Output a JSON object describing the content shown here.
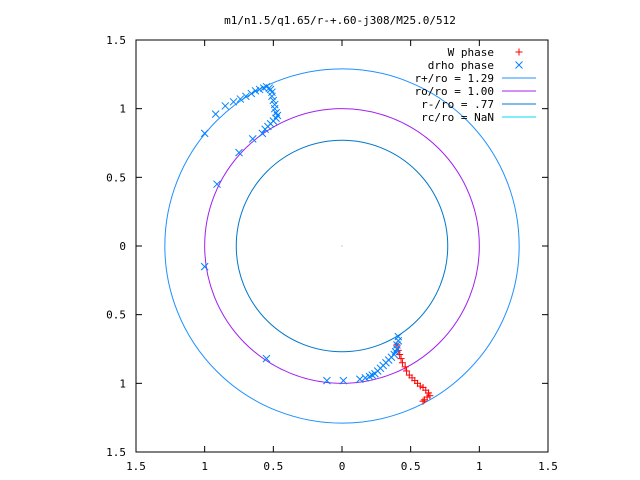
{
  "chart_data": {
    "type": "scatter",
    "title": "m1/n1.5/q1.65/r-+.60-j308/M25.0/512",
    "xlabel": "",
    "ylabel": "",
    "xlim": [
      -1.5,
      1.5
    ],
    "ylim": [
      -1.5,
      1.5
    ],
    "x_ticks": [
      -1.5,
      -1,
      -0.5,
      0,
      0.5,
      1,
      1.5
    ],
    "x_tick_labels": [
      "1.5",
      "1",
      "0.5",
      "0",
      "0.5",
      "1",
      "1.5"
    ],
    "y_ticks": [
      1.5,
      1,
      0.5,
      0,
      -0.5,
      -1,
      -1.5
    ],
    "y_tick_labels": [
      "1.5",
      "1",
      "0.5",
      "0",
      "0.5",
      "1",
      "1.5"
    ],
    "grid": false,
    "legend_position": "top-right",
    "colors": {
      "w_phase": "#ff0000",
      "drho_phase": "#0080ff",
      "r_plus": "#1e90ff",
      "r_o": "#a020f0",
      "r_minus": "#0077cc",
      "r_c": "#00ddee"
    },
    "series": [
      {
        "name": "W phase",
        "marker": "+",
        "color": "#ff0000",
        "points": [
          [
            0.4,
            -0.72
          ],
          [
            0.41,
            -0.76
          ],
          [
            0.42,
            -0.79
          ],
          [
            0.43,
            -0.82
          ],
          [
            0.44,
            -0.85
          ],
          [
            0.46,
            -0.88
          ],
          [
            0.47,
            -0.91
          ],
          [
            0.49,
            -0.94
          ],
          [
            0.51,
            -0.96
          ],
          [
            0.53,
            -0.98
          ],
          [
            0.55,
            -1.0
          ],
          [
            0.57,
            -1.02
          ],
          [
            0.59,
            -1.03
          ],
          [
            0.61,
            -1.05
          ],
          [
            0.63,
            -1.07
          ],
          [
            0.64,
            -1.09
          ],
          [
            0.62,
            -1.1
          ],
          [
            0.6,
            -1.12
          ],
          [
            0.59,
            -1.13
          ]
        ]
      },
      {
        "name": "drho phase",
        "marker": "x",
        "color": "#0080ff",
        "points": [
          [
            0.41,
            -0.66
          ],
          [
            0.41,
            -0.69
          ],
          [
            0.4,
            -0.72
          ],
          [
            0.4,
            -0.75
          ],
          [
            0.39,
            -0.77
          ],
          [
            0.38,
            -0.79
          ],
          [
            0.36,
            -0.81
          ],
          [
            0.34,
            -0.83
          ],
          [
            0.32,
            -0.85
          ],
          [
            0.3,
            -0.87
          ],
          [
            0.28,
            -0.89
          ],
          [
            0.26,
            -0.91
          ],
          [
            0.24,
            -0.93
          ],
          [
            0.22,
            -0.94
          ],
          [
            0.2,
            -0.95
          ],
          [
            0.17,
            -0.96
          ],
          [
            0.13,
            -0.97
          ],
          [
            0.01,
            -0.98
          ],
          [
            -0.11,
            -0.98
          ],
          [
            -0.55,
            -0.82
          ],
          [
            -1.0,
            -0.15
          ],
          [
            -0.91,
            0.45
          ],
          [
            -0.75,
            0.68
          ],
          [
            -0.65,
            0.78
          ],
          [
            -0.58,
            0.82
          ],
          [
            -0.56,
            0.85
          ],
          [
            -0.54,
            0.87
          ],
          [
            -0.52,
            0.89
          ],
          [
            -0.5,
            0.91
          ],
          [
            -0.48,
            0.93
          ],
          [
            -0.47,
            0.95
          ],
          [
            -0.48,
            0.97
          ],
          [
            -0.49,
            1.0
          ],
          [
            -0.49,
            1.03
          ],
          [
            -0.5,
            1.06
          ],
          [
            -0.51,
            1.09
          ],
          [
            -0.51,
            1.12
          ],
          [
            -0.52,
            1.14
          ],
          [
            -0.53,
            1.15
          ],
          [
            -0.55,
            1.16
          ],
          [
            -0.57,
            1.15
          ],
          [
            -0.6,
            1.14
          ],
          [
            -0.63,
            1.13
          ],
          [
            -0.66,
            1.11
          ],
          [
            -0.7,
            1.09
          ],
          [
            -0.74,
            1.07
          ],
          [
            -0.79,
            1.05
          ],
          [
            -0.85,
            1.02
          ],
          [
            -0.92,
            0.96
          ],
          [
            -1.0,
            0.82
          ]
        ]
      },
      {
        "name": "r+/ro = 1.29",
        "kind": "circle",
        "radius": 1.29,
        "color": "#1e90ff"
      },
      {
        "name": "ro/ro = 1.00",
        "kind": "circle",
        "radius": 1.0,
        "color": "#a020f0"
      },
      {
        "name": "r-/ro = .77",
        "kind": "circle",
        "radius": 0.77,
        "color": "#0077cc"
      },
      {
        "name": "rc/ro = NaN",
        "kind": "circle",
        "radius": null,
        "color": "#00ddee"
      }
    ]
  }
}
